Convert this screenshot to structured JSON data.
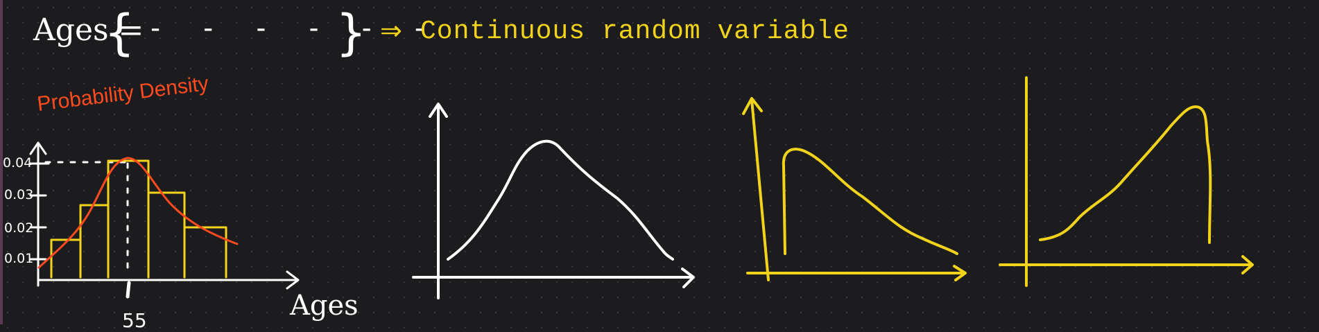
{
  "heading": {
    "ages_label": "Ages =",
    "brace_open": "{",
    "set_dashes": "- - - - - -",
    "brace_close": "}",
    "implies": "⇒",
    "result": "Continuous random variable"
  },
  "histogram": {
    "ylabel": "Probability Density",
    "y_ticks": [
      "0.04",
      "0.03",
      "0.02",
      "0.01"
    ],
    "xlabel": "Ages",
    "marker_label": "55"
  },
  "colors": {
    "white": "#ffffff",
    "yellow": "#f2d31b",
    "red": "#ff4b1f",
    "background": "#1c1c1e"
  }
}
